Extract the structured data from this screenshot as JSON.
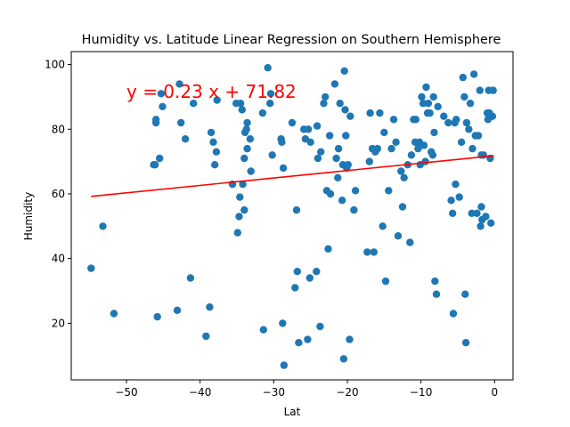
{
  "chart_data": {
    "type": "scatter",
    "title": "Humidity vs. Latitude Linear Regression on Southern Hemisphere",
    "xlabel": "Lat",
    "ylabel": "Humidity",
    "xlim": [
      -57.5,
      2.5
    ],
    "ylim": [
      2.5,
      104
    ],
    "xticks": [
      -50,
      -40,
      -30,
      -20,
      -10,
      0
    ],
    "yticks": [
      20,
      40,
      60,
      80,
      100
    ],
    "grid": false,
    "point_color": "#1f77b4",
    "line_color": "#ff0000",
    "regression": {
      "slope": 0.23,
      "intercept": 71.82,
      "x_range": [
        -54.8,
        -0.1
      ],
      "equation": "y = 0.23 x + 71.82",
      "annotation_at": [
        -50,
        90
      ]
    },
    "points": [
      [
        -54.8,
        37
      ],
      [
        -53.2,
        50
      ],
      [
        -51.7,
        23
      ],
      [
        -46.3,
        69
      ],
      [
        -46.1,
        69
      ],
      [
        -46.0,
        83
      ],
      [
        -46.0,
        82
      ],
      [
        -45.8,
        22
      ],
      [
        -45.5,
        71
      ],
      [
        -45.3,
        91
      ],
      [
        -45.1,
        87
      ],
      [
        -43.1,
        24
      ],
      [
        -42.8,
        94
      ],
      [
        -42.6,
        82
      ],
      [
        -42.0,
        77
      ],
      [
        -41.3,
        34
      ],
      [
        -40.9,
        88
      ],
      [
        -39.2,
        16
      ],
      [
        -38.7,
        25
      ],
      [
        -38.5,
        79
      ],
      [
        -38.2,
        76
      ],
      [
        -38.0,
        69
      ],
      [
        -37.8,
        73
      ],
      [
        -37.7,
        89
      ],
      [
        -35.6,
        63
      ],
      [
        -35.1,
        88
      ],
      [
        -34.9,
        48
      ],
      [
        -34.7,
        53
      ],
      [
        -34.6,
        59
      ],
      [
        -34.5,
        88
      ],
      [
        -34.3,
        86
      ],
      [
        -34.2,
        63
      ],
      [
        -34.0,
        71
      ],
      [
        -34.0,
        55
      ],
      [
        -33.9,
        79
      ],
      [
        -33.7,
        80
      ],
      [
        -33.6,
        74
      ],
      [
        -33.6,
        82
      ],
      [
        -33.2,
        77
      ],
      [
        -33.1,
        67
      ],
      [
        -31.5,
        85
      ],
      [
        -31.4,
        18
      ],
      [
        -30.8,
        99
      ],
      [
        -30.5,
        88
      ],
      [
        -30.4,
        91
      ],
      [
        -30.2,
        72
      ],
      [
        -29.0,
        77
      ],
      [
        -28.9,
        76
      ],
      [
        -28.8,
        20
      ],
      [
        -28.7,
        68
      ],
      [
        -28.6,
        7
      ],
      [
        -27.5,
        82
      ],
      [
        -27.1,
        31
      ],
      [
        -26.9,
        55
      ],
      [
        -26.8,
        36
      ],
      [
        -26.6,
        14
      ],
      [
        -25.9,
        80
      ],
      [
        -25.7,
        77
      ],
      [
        -25.4,
        15
      ],
      [
        -25.3,
        80
      ],
      [
        -25.1,
        34
      ],
      [
        -25.0,
        76
      ],
      [
        -24.2,
        36
      ],
      [
        -24.1,
        81
      ],
      [
        -24.0,
        71
      ],
      [
        -23.7,
        19
      ],
      [
        -23.6,
        73
      ],
      [
        -23.2,
        88
      ],
      [
        -23.0,
        90
      ],
      [
        -22.8,
        61
      ],
      [
        -22.6,
        43
      ],
      [
        -22.4,
        78
      ],
      [
        -22.3,
        60
      ],
      [
        -21.7,
        94
      ],
      [
        -21.5,
        71
      ],
      [
        -21.3,
        65
      ],
      [
        -21.2,
        74
      ],
      [
        -21.0,
        88
      ],
      [
        -20.7,
        58
      ],
      [
        -20.6,
        69
      ],
      [
        -20.5,
        9
      ],
      [
        -20.4,
        98
      ],
      [
        -20.3,
        86
      ],
      [
        -20.2,
        78
      ],
      [
        -20.1,
        68
      ],
      [
        -19.9,
        69
      ],
      [
        -19.7,
        15
      ],
      [
        -19.6,
        84
      ],
      [
        -19.1,
        55
      ],
      [
        -18.9,
        61
      ],
      [
        -17.3,
        42
      ],
      [
        -17.0,
        70
      ],
      [
        -16.9,
        85
      ],
      [
        -16.6,
        74
      ],
      [
        -16.4,
        42
      ],
      [
        -16.2,
        73
      ],
      [
        -15.9,
        74
      ],
      [
        -15.6,
        85
      ],
      [
        -15.2,
        50
      ],
      [
        -15.0,
        79
      ],
      [
        -14.8,
        33
      ],
      [
        -14.4,
        61
      ],
      [
        -14.0,
        74
      ],
      [
        -13.7,
        83
      ],
      [
        -13.4,
        76
      ],
      [
        -13.1,
        47
      ],
      [
        -12.7,
        67
      ],
      [
        -12.5,
        56
      ],
      [
        -12.3,
        65
      ],
      [
        -11.8,
        69
      ],
      [
        -11.5,
        45
      ],
      [
        -11.3,
        72
      ],
      [
        -11.0,
        83
      ],
      [
        -10.8,
        76
      ],
      [
        -10.7,
        83
      ],
      [
        -10.4,
        74
      ],
      [
        -10.2,
        76
      ],
      [
        -10.1,
        69
      ],
      [
        -9.9,
        90
      ],
      [
        -9.7,
        88
      ],
      [
        -9.6,
        75
      ],
      [
        -9.4,
        70
      ],
      [
        -9.3,
        93
      ],
      [
        -9.1,
        85
      ],
      [
        -9.0,
        88
      ],
      [
        -8.8,
        85
      ],
      [
        -8.6,
        73
      ],
      [
        -8.4,
        72
      ],
      [
        -8.3,
        90
      ],
      [
        -8.2,
        79
      ],
      [
        -8.1,
        33
      ],
      [
        -7.9,
        29
      ],
      [
        -7.7,
        87
      ],
      [
        -6.9,
        84
      ],
      [
        -6.3,
        82
      ],
      [
        -5.9,
        58
      ],
      [
        -5.7,
        54
      ],
      [
        -5.6,
        23
      ],
      [
        -5.4,
        82
      ],
      [
        -5.3,
        63
      ],
      [
        -5.2,
        83
      ],
      [
        -4.8,
        59
      ],
      [
        -4.5,
        76
      ],
      [
        -4.3,
        96
      ],
      [
        -4.1,
        90
      ],
      [
        -4.0,
        29
      ],
      [
        -3.9,
        14
      ],
      [
        -3.8,
        82
      ],
      [
        -3.5,
        80
      ],
      [
        -3.3,
        88
      ],
      [
        -3.1,
        54
      ],
      [
        -3.0,
        74
      ],
      [
        -2.8,
        97
      ],
      [
        -2.6,
        78
      ],
      [
        -2.4,
        54
      ],
      [
        -2.2,
        78
      ],
      [
        -2.0,
        92
      ],
      [
        -1.9,
        50
      ],
      [
        -1.8,
        56
      ],
      [
        -1.8,
        72
      ],
      [
        -1.7,
        52
      ],
      [
        -1.5,
        72
      ],
      [
        -1.2,
        53
      ],
      [
        -1.0,
        85
      ],
      [
        -0.9,
        83
      ],
      [
        -0.8,
        92
      ],
      [
        -0.7,
        85
      ],
      [
        -0.6,
        71
      ],
      [
        -0.5,
        51
      ],
      [
        -0.3,
        84
      ],
      [
        -0.2,
        92
      ]
    ]
  }
}
